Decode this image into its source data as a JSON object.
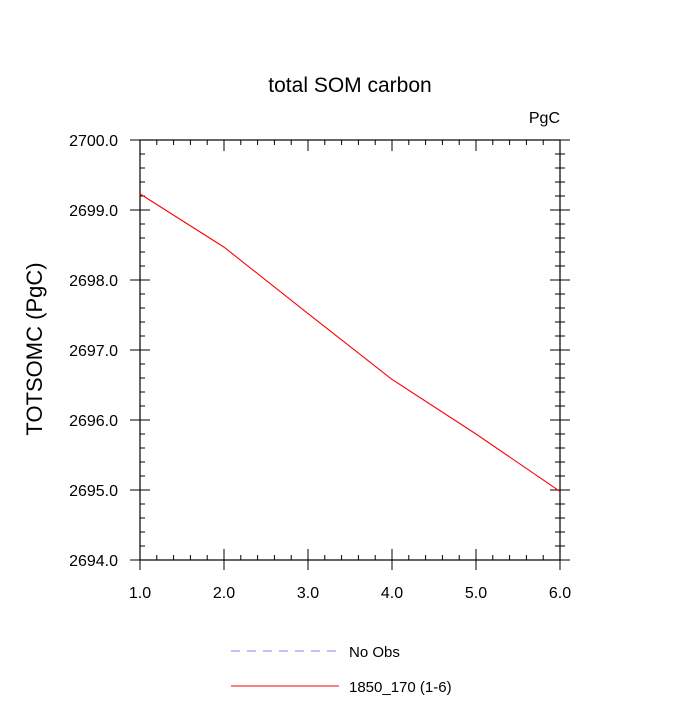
{
  "chart_data": {
    "type": "line",
    "title": "total SOM carbon",
    "units_label": "PgC",
    "xlabel": "",
    "ylabel": "TOTSOMC  (PgC)",
    "xlim": [
      1.0,
      6.0
    ],
    "ylim": [
      2694.0,
      2700.0
    ],
    "x_ticks": [
      "1.0",
      "2.0",
      "3.0",
      "4.0",
      "5.0",
      "6.0"
    ],
    "y_ticks": [
      "2694.0",
      "2695.0",
      "2696.0",
      "2697.0",
      "2698.0",
      "2699.0",
      "2700.0"
    ],
    "grid": false,
    "legend_position": "bottom-center",
    "series": [
      {
        "name": "No Obs",
        "color": "#8080ff",
        "dash": "dashed",
        "x": [],
        "y": []
      },
      {
        "name": "1850_170 (1-6)",
        "color": "#ff0000",
        "dash": "solid",
        "x": [
          1.0,
          2.0,
          3.0,
          4.0,
          5.0,
          6.0
        ],
        "y": [
          2699.23,
          2698.47,
          2697.52,
          2696.58,
          2695.8,
          2694.98
        ]
      }
    ]
  }
}
